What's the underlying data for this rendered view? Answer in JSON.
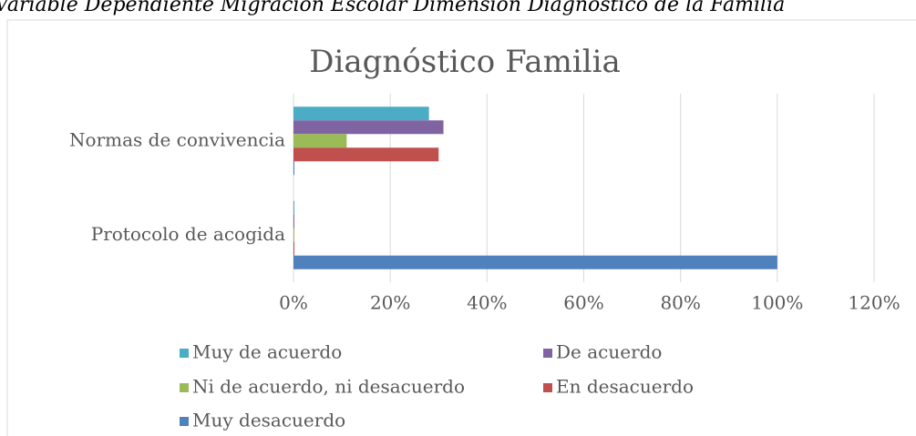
{
  "caption": "Variable Dependiente Migración Escolar Dimensión Diagnóstico de la Familia",
  "chart_data": {
    "type": "hbar",
    "title": "Diagnóstico Familia",
    "categories": [
      "Normas de convivencia",
      "Protocolo de acogida"
    ],
    "series": [
      {
        "name": "Muy de acuerdo",
        "color": "#4bacc6",
        "values": [
          28,
          0
        ]
      },
      {
        "name": "De acuerdo",
        "color": "#8064a2",
        "values": [
          31,
          0
        ]
      },
      {
        "name": "Ni de acuerdo, ni desacuerdo",
        "color": "#9bbb59",
        "values": [
          11,
          0
        ]
      },
      {
        "name": "En desacuerdo",
        "color": "#c0504d",
        "values": [
          30,
          0
        ]
      },
      {
        "name": "Muy desacuerdo",
        "color": "#4f81bd",
        "values": [
          0,
          100
        ]
      }
    ],
    "xlim": [
      0,
      120
    ],
    "xticks": [
      {
        "value": 0,
        "label": "0%"
      },
      {
        "value": 20,
        "label": "20%"
      },
      {
        "value": 40,
        "label": "40%"
      },
      {
        "value": 60,
        "label": "60%"
      },
      {
        "value": 80,
        "label": "80%"
      },
      {
        "value": 100,
        "label": "100%"
      },
      {
        "value": 120,
        "label": "120%"
      }
    ],
    "grid": true,
    "legend": "bottom"
  }
}
